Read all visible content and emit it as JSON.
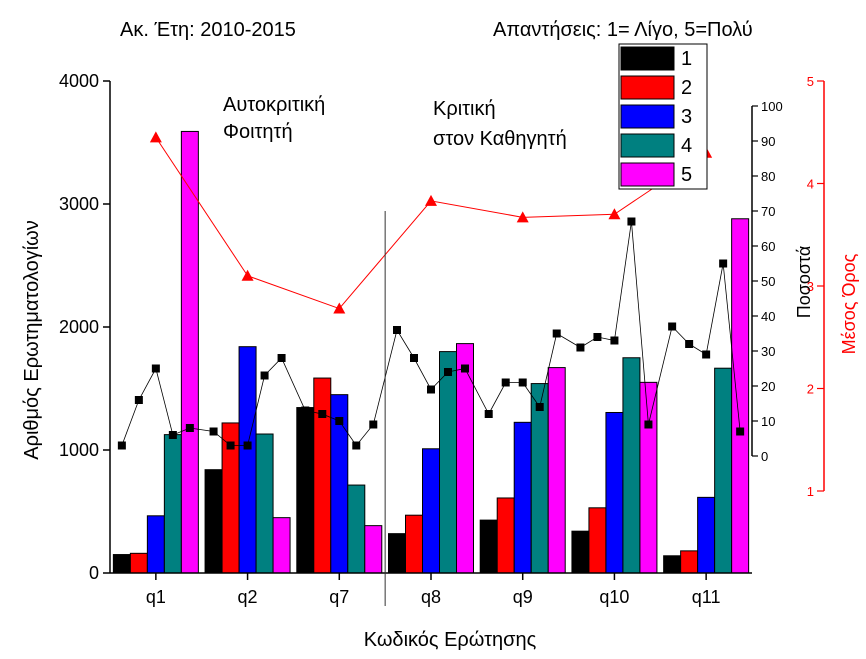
{
  "header": {
    "left_note": "Ακ. Έτη: 2010-2015",
    "right_note": "Απαντήσεις: 1= Λίγο, 5=Πολύ"
  },
  "chart_data": {
    "type": "bar",
    "xlabel": "Κωδικός Ερώτησης",
    "ylabel": "Αριθμός Ερωτηματολογίων",
    "ylim": [
      0,
      4000
    ],
    "categories": [
      "q1",
      "q2",
      "q7",
      "q8",
      "q9",
      "q10",
      "q11"
    ],
    "series": [
      {
        "name": "1",
        "color": "#000000",
        "values": [
          150,
          840,
          1345,
          320,
          430,
          340,
          140
        ]
      },
      {
        "name": "2",
        "color": "#ff0000",
        "values": [
          160,
          1220,
          1585,
          470,
          610,
          530,
          180
        ]
      },
      {
        "name": "3",
        "color": "#0000ff",
        "values": [
          465,
          1840,
          1450,
          1010,
          1225,
          1305,
          615
        ]
      },
      {
        "name": "4",
        "color": "#008080",
        "values": [
          1125,
          1130,
          715,
          1800,
          1540,
          1750,
          1665
        ]
      },
      {
        "name": "5",
        "color": "#ff00ff",
        "values": [
          3590,
          450,
          385,
          1865,
          1670,
          1550,
          2880
        ]
      }
    ],
    "percent_axis": {
      "label": "Ποσοστά",
      "ylim": [
        0,
        100
      ],
      "ticks": [
        0,
        10,
        20,
        30,
        40,
        50,
        60,
        70,
        80,
        90,
        100
      ],
      "values": [
        [
          3,
          16,
          25,
          6,
          8
        ],
        [
          7,
          3,
          3,
          23,
          28
        ],
        [
          13,
          12,
          10,
          3,
          9
        ],
        [
          36,
          28,
          19,
          24,
          25
        ],
        [
          12,
          21,
          21,
          14,
          35
        ],
        [
          31,
          34,
          33,
          67,
          9
        ],
        [
          37,
          32,
          29,
          55,
          7
        ]
      ]
    },
    "mean_axis": {
      "label": "Μέσος Όρος",
      "color": "#ff0000",
      "ylim": [
        1,
        5
      ],
      "ticks": [
        1,
        2,
        3,
        4,
        5
      ],
      "values": [
        4.45,
        3.1,
        2.78,
        3.83,
        3.67,
        3.7,
        4.3
      ]
    },
    "annotations": [
      {
        "text": "Αυτοκριτική",
        "text2": "Φοιτητή"
      },
      {
        "text": "Κριτική",
        "text2": "στον Καθηγητή"
      }
    ],
    "legend_position": "top-right"
  }
}
